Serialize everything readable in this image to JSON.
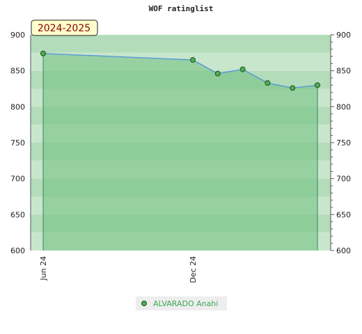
{
  "chart_data": {
    "type": "line",
    "title": "WOF ratinglist",
    "season_label": "2024-2025",
    "x_tick_labels": [
      "Jun 24",
      "Dec 24"
    ],
    "x_tick_months": [
      "2024-06",
      "2024-12"
    ],
    "y_ticks": [
      600,
      650,
      700,
      750,
      800,
      850,
      900
    ],
    "ylim": [
      600,
      900
    ],
    "y_axis_sides": [
      "left",
      "right"
    ],
    "series": [
      {
        "name": "ALVARADO Anahi",
        "dates": [
          "2024-06",
          "2024-12",
          "2025-01",
          "2025-02",
          "2025-03",
          "2025-04",
          "2025-05"
        ],
        "values": [
          874,
          865,
          846,
          852,
          833,
          826,
          830
        ]
      }
    ],
    "legend_position": "bottom-center",
    "grid": true,
    "colors": {
      "line": "#5b9bd5",
      "area_fill": "#6fbf80",
      "marker_fill": "#4caf50",
      "marker_stroke": "#1f4f1f",
      "season_box_fill": "#ffffcc",
      "season_box_text": "#8b0000"
    }
  }
}
